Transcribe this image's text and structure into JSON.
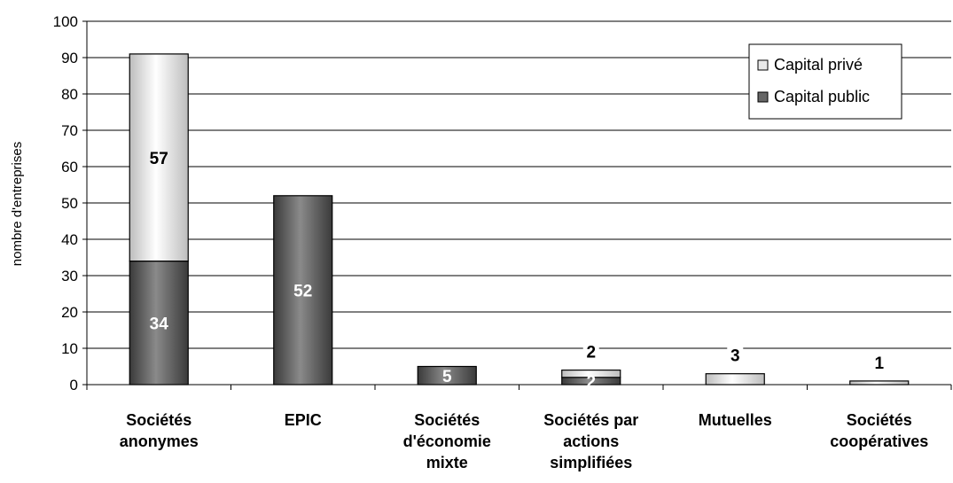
{
  "chart_data": {
    "type": "bar",
    "stacked": true,
    "ylabel": "nombre d'entreprises",
    "ylim": [
      0,
      100
    ],
    "yticks": [
      0,
      10,
      20,
      30,
      40,
      50,
      60,
      70,
      80,
      90,
      100
    ],
    "grid": true,
    "legend_position": "top-right",
    "categories": [
      [
        "Sociétés",
        "anonymes"
      ],
      [
        "EPIC"
      ],
      [
        "Sociétés",
        "d'économie",
        "mixte"
      ],
      [
        "Sociétés par",
        "actions",
        "simplifiées"
      ],
      [
        "Mutuelles"
      ],
      [
        "Sociétés",
        "coopératives"
      ]
    ],
    "series": [
      {
        "name": "Capital public",
        "color": "#666666",
        "values": [
          34,
          52,
          5,
          2,
          0,
          0
        ],
        "labels": [
          "34",
          "52",
          "5",
          "2",
          "",
          ""
        ]
      },
      {
        "name": "Capital privé",
        "color": "#e8e8e8",
        "values": [
          57,
          0,
          0,
          2,
          3,
          1
        ],
        "labels": [
          "57",
          "",
          "",
          "2",
          "3",
          "1"
        ]
      }
    ]
  }
}
